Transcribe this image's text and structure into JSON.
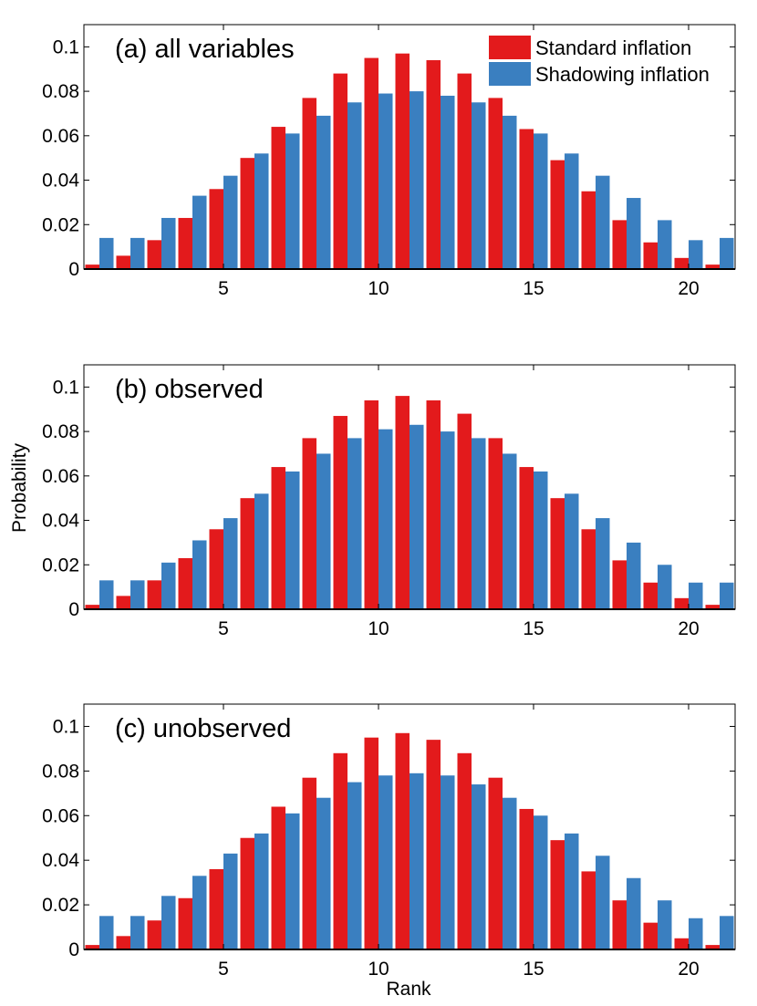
{
  "figure": {
    "ylabel": "Probability",
    "xlabel": "Rank"
  },
  "legend": {
    "items": [
      {
        "label": "Standard inflation",
        "color": "#e31a1c"
      },
      {
        "label": "Shadowing inflation",
        "color": "#3a7fc0"
      }
    ]
  },
  "chart_data": [
    {
      "type": "bar",
      "title": "(a) all variables",
      "xlabel": "",
      "ylabel": "",
      "x": [
        1,
        2,
        3,
        4,
        5,
        6,
        7,
        8,
        9,
        10,
        11,
        12,
        13,
        14,
        15,
        16,
        17,
        18,
        19,
        20,
        21
      ],
      "xticks": [
        5,
        10,
        15,
        20
      ],
      "yticks": [
        0,
        0.02,
        0.04,
        0.06,
        0.08,
        0.1
      ],
      "ytick_labels": [
        "0",
        "0.02",
        "0.04",
        "0.06",
        "0.08",
        "0.1"
      ],
      "xlim": [
        0.5,
        21.5
      ],
      "ylim": [
        0,
        0.11
      ],
      "legend_position": "top-right",
      "series": [
        {
          "name": "Standard inflation",
          "color": "#e31a1c",
          "values": [
            0.002,
            0.006,
            0.013,
            0.023,
            0.036,
            0.05,
            0.064,
            0.077,
            0.088,
            0.095,
            0.097,
            0.094,
            0.088,
            0.077,
            0.063,
            0.049,
            0.035,
            0.022,
            0.012,
            0.005,
            0.002
          ]
        },
        {
          "name": "Shadowing inflation",
          "color": "#3a7fc0",
          "values": [
            0.014,
            0.014,
            0.023,
            0.033,
            0.042,
            0.052,
            0.061,
            0.069,
            0.075,
            0.079,
            0.08,
            0.078,
            0.075,
            0.069,
            0.061,
            0.052,
            0.042,
            0.032,
            0.022,
            0.013,
            0.014
          ]
        }
      ]
    },
    {
      "type": "bar",
      "title": "(b) observed",
      "xlabel": "",
      "ylabel": "Probability",
      "x": [
        1,
        2,
        3,
        4,
        5,
        6,
        7,
        8,
        9,
        10,
        11,
        12,
        13,
        14,
        15,
        16,
        17,
        18,
        19,
        20,
        21
      ],
      "xticks": [
        5,
        10,
        15,
        20
      ],
      "yticks": [
        0,
        0.02,
        0.04,
        0.06,
        0.08,
        0.1
      ],
      "ytick_labels": [
        "0",
        "0.02",
        "0.04",
        "0.06",
        "0.08",
        "0.1"
      ],
      "xlim": [
        0.5,
        21.5
      ],
      "ylim": [
        0,
        0.11
      ],
      "series": [
        {
          "name": "Standard inflation",
          "color": "#e31a1c",
          "values": [
            0.002,
            0.006,
            0.013,
            0.023,
            0.036,
            0.05,
            0.064,
            0.077,
            0.087,
            0.094,
            0.096,
            0.094,
            0.088,
            0.077,
            0.064,
            0.05,
            0.036,
            0.022,
            0.012,
            0.005,
            0.002
          ]
        },
        {
          "name": "Shadowing inflation",
          "color": "#3a7fc0",
          "values": [
            0.013,
            0.013,
            0.021,
            0.031,
            0.041,
            0.052,
            0.062,
            0.07,
            0.077,
            0.081,
            0.083,
            0.08,
            0.077,
            0.07,
            0.062,
            0.052,
            0.041,
            0.03,
            0.02,
            0.012,
            0.012
          ]
        }
      ]
    },
    {
      "type": "bar",
      "title": "(c) unobserved",
      "xlabel": "Rank",
      "ylabel": "",
      "x": [
        1,
        2,
        3,
        4,
        5,
        6,
        7,
        8,
        9,
        10,
        11,
        12,
        13,
        14,
        15,
        16,
        17,
        18,
        19,
        20,
        21
      ],
      "xticks": [
        5,
        10,
        15,
        20
      ],
      "yticks": [
        0,
        0.02,
        0.04,
        0.06,
        0.08,
        0.1
      ],
      "ytick_labels": [
        "0",
        "0.02",
        "0.04",
        "0.06",
        "0.08",
        "0.1"
      ],
      "xlim": [
        0.5,
        21.5
      ],
      "ylim": [
        0,
        0.11
      ],
      "series": [
        {
          "name": "Standard inflation",
          "color": "#e31a1c",
          "values": [
            0.002,
            0.006,
            0.013,
            0.023,
            0.036,
            0.05,
            0.064,
            0.077,
            0.088,
            0.095,
            0.097,
            0.094,
            0.088,
            0.077,
            0.063,
            0.049,
            0.035,
            0.022,
            0.012,
            0.005,
            0.002
          ]
        },
        {
          "name": "Shadowing inflation",
          "color": "#3a7fc0",
          "values": [
            0.015,
            0.015,
            0.024,
            0.033,
            0.043,
            0.052,
            0.061,
            0.068,
            0.075,
            0.078,
            0.079,
            0.078,
            0.074,
            0.068,
            0.06,
            0.052,
            0.042,
            0.032,
            0.022,
            0.014,
            0.015
          ]
        }
      ]
    }
  ]
}
